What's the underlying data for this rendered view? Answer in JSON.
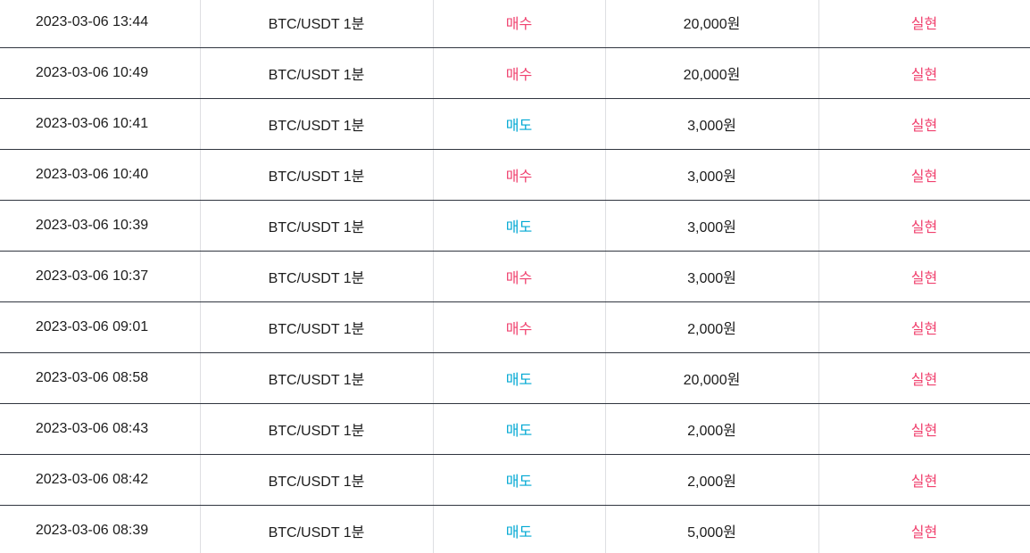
{
  "colors": {
    "buy": "#f0416e",
    "sell": "#00a8d3",
    "status": "#f0416e"
  },
  "table": {
    "rows": [
      {
        "datetime": "2023-03-06 13:44",
        "market": "BTC/USDT 1분",
        "side": "매수",
        "side_type": "buy",
        "amount": "20,000원",
        "status": "실현"
      },
      {
        "datetime": "2023-03-06 10:49",
        "market": "BTC/USDT 1분",
        "side": "매수",
        "side_type": "buy",
        "amount": "20,000원",
        "status": "실현"
      },
      {
        "datetime": "2023-03-06 10:41",
        "market": "BTC/USDT 1분",
        "side": "매도",
        "side_type": "sell",
        "amount": "3,000원",
        "status": "실현"
      },
      {
        "datetime": "2023-03-06 10:40",
        "market": "BTC/USDT 1분",
        "side": "매수",
        "side_type": "buy",
        "amount": "3,000원",
        "status": "실현"
      },
      {
        "datetime": "2023-03-06 10:39",
        "market": "BTC/USDT 1분",
        "side": "매도",
        "side_type": "sell",
        "amount": "3,000원",
        "status": "실현"
      },
      {
        "datetime": "2023-03-06 10:37",
        "market": "BTC/USDT 1분",
        "side": "매수",
        "side_type": "buy",
        "amount": "3,000원",
        "status": "실현"
      },
      {
        "datetime": "2023-03-06 09:01",
        "market": "BTC/USDT 1분",
        "side": "매수",
        "side_type": "buy",
        "amount": "2,000원",
        "status": "실현"
      },
      {
        "datetime": "2023-03-06 08:58",
        "market": "BTC/USDT 1분",
        "side": "매도",
        "side_type": "sell",
        "amount": "20,000원",
        "status": "실현"
      },
      {
        "datetime": "2023-03-06 08:43",
        "market": "BTC/USDT 1분",
        "side": "매도",
        "side_type": "sell",
        "amount": "2,000원",
        "status": "실현"
      },
      {
        "datetime": "2023-03-06 08:42",
        "market": "BTC/USDT 1분",
        "side": "매도",
        "side_type": "sell",
        "amount": "2,000원",
        "status": "실현"
      },
      {
        "datetime": "2023-03-06 08:39",
        "market": "BTC/USDT 1분",
        "side": "매도",
        "side_type": "sell",
        "amount": "5,000원",
        "status": "실현"
      }
    ]
  }
}
